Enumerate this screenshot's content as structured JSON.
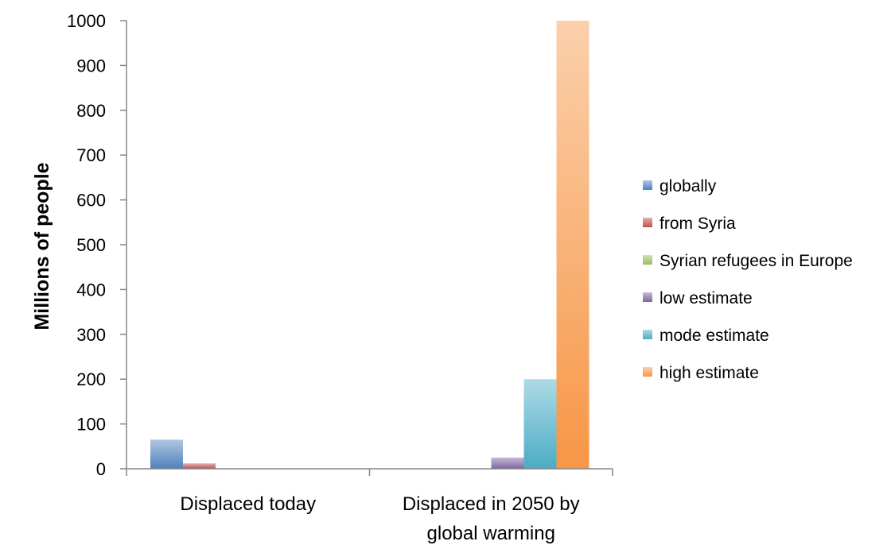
{
  "chart_data": {
    "type": "bar",
    "ylabel": "Millions of people",
    "xlabel": "",
    "title": "",
    "ylim": [
      0,
      1000
    ],
    "yticks": [
      0,
      100,
      200,
      300,
      400,
      500,
      600,
      700,
      800,
      900,
      1000
    ],
    "categories": [
      [
        "Displaced today"
      ],
      [
        "Displaced in 2050 by",
        "global warming"
      ]
    ],
    "grid": false,
    "legend_position": "right",
    "series": [
      {
        "name": "globally",
        "color": "#4f81bd",
        "values": [
          65,
          0
        ]
      },
      {
        "name": "from Syria",
        "color": "#c0504d",
        "values": [
          12,
          0
        ]
      },
      {
        "name": "Syrian refugees in Europe",
        "color": "#9bbb59",
        "values": [
          1,
          0
        ]
      },
      {
        "name": "low estimate",
        "color": "#8064a2",
        "values": [
          0,
          25
        ]
      },
      {
        "name": "mode estimate",
        "color": "#4bacc6",
        "values": [
          0,
          200
        ]
      },
      {
        "name": "high estimate",
        "color": "#f79646",
        "values": [
          0,
          1000
        ]
      }
    ]
  }
}
